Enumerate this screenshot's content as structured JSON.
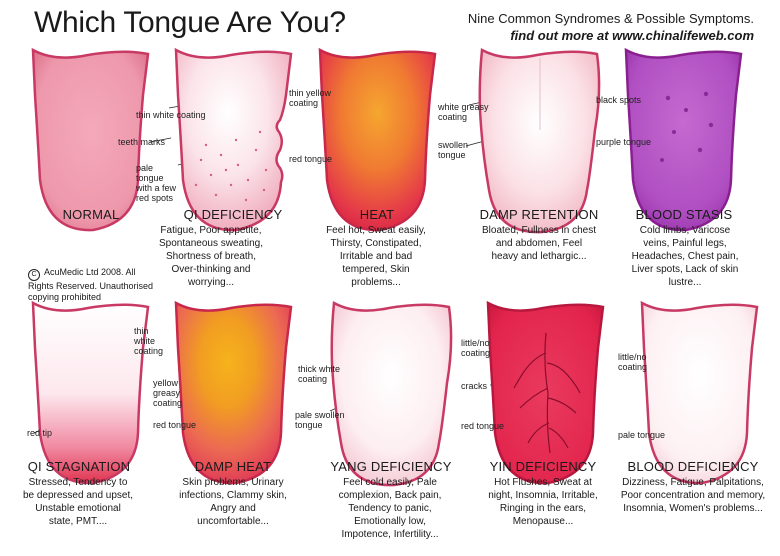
{
  "header": {
    "title": "Which Tongue Are You?",
    "subtitle_line1": "Nine Common Syndromes & Possible Symptoms.",
    "subtitle_line2": "find out more at www.chinalifeweb.com"
  },
  "copyright": {
    "symbol": "C",
    "text": "AcuMedic Ltd 2008. All Rights Reserved. Unauthorised copying prohibited"
  },
  "tongues": [
    {
      "name": "NORMAL",
      "description": "",
      "annotations": []
    },
    {
      "name": "QI DEFICIENCY",
      "description": "Fatigue, Poor appetite, Spontaneous sweating, Shortness of breath, Over-thinking and worrying...",
      "annotations": [
        "thin white coating",
        "teeth marks",
        "pale tongue with a few red spots"
      ]
    },
    {
      "name": "HEAT",
      "description": "Feel hot, Sweat easily, Thirsty, Constipated, Irritable and bad tempered, Skin problems...",
      "annotations": [
        "thin yellow coating",
        "red tongue"
      ]
    },
    {
      "name": "DAMP RETENTION",
      "description": "Bloated, Fullness in chest and abdomen, Feel heavy and lethargic...",
      "annotations": [
        "white greasy coating",
        "swollen tongue"
      ]
    },
    {
      "name": "BLOOD STASIS",
      "description": "Cold limbs, Varicose veins, Painful legs, Headaches, Chest pain, Liver spots, Lack of skin lustre...",
      "annotations": [
        "black spots",
        "purple tongue"
      ]
    },
    {
      "name": "QI STAGNATION",
      "description": "Stressed, Tendency to be depressed and upset, Unstable emotional state, PMT....",
      "annotations": [
        "thin white coating",
        "red tip"
      ]
    },
    {
      "name": "DAMP HEAT",
      "description": "Skin problems, Urinary infections, Clammy skin, Angry and uncomfortable...",
      "annotations": [
        "yellow greasy coating",
        "red tongue"
      ]
    },
    {
      "name": "YANG DEFICIENCY",
      "description": "Feel cold easily, Pale complexion, Back pain, Tendency to panic, Emotionally low, Impotence, Infertility...",
      "annotations": [
        "thick white coating",
        "pale swollen tongue"
      ]
    },
    {
      "name": "YIN DEFICIENCY",
      "description": "Hot Flushes, Sweat at night, Insomnia, Irritable, Ringing in the ears, Menopause...",
      "annotations": [
        "little/no coating",
        "cracks",
        "red tongue"
      ]
    },
    {
      "name": "BLOOD DEFICIENCY",
      "description": "Dizziness, Fatigue, Palpitations, Poor concentration and memory, Insomnia, Women's problems...",
      "annotations": [
        "little/no coating",
        "pale tongue"
      ]
    }
  ]
}
